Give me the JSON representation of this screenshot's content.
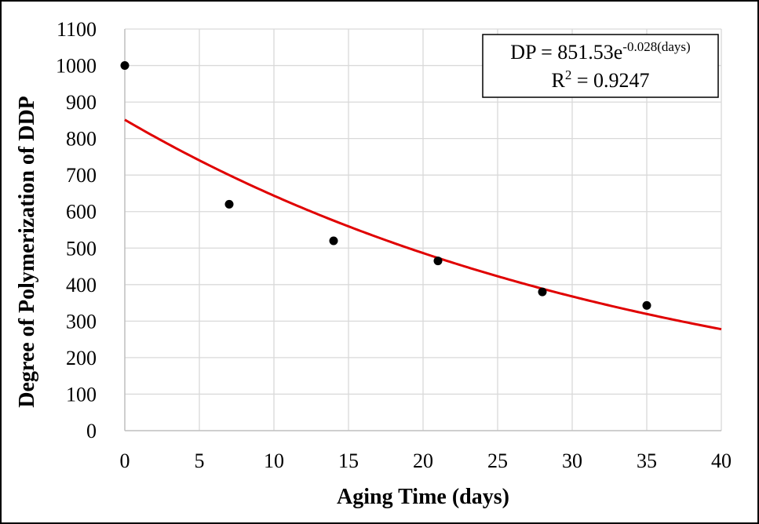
{
  "chart_data": {
    "type": "scatter",
    "title": "",
    "xlabel": "Aging Time (days)",
    "ylabel": "Degree of Polymerization of DDP",
    "xlim": [
      0,
      40
    ],
    "ylim": [
      0,
      1100
    ],
    "xticks": [
      0,
      5,
      10,
      15,
      20,
      25,
      30,
      35,
      40
    ],
    "yticks": [
      0,
      100,
      200,
      300,
      400,
      500,
      600,
      700,
      800,
      900,
      1000,
      1100
    ],
    "grid": true,
    "legend": "none",
    "series": [
      {
        "x": [
          0,
          7,
          14,
          21,
          28,
          35
        ],
        "y": [
          1000,
          620,
          520,
          465,
          380,
          343
        ],
        "marker": "circle",
        "color": "#000000"
      }
    ],
    "trendline": {
      "model": "exponential",
      "a": 851.53,
      "b": -0.028,
      "color": "#e00000"
    },
    "annotation": {
      "equation_main": "DP = 851.53e",
      "equation_exponent": "-0.028(days)",
      "r2_label": "R",
      "r2_power": "2",
      "r2_rest": " = 0.9247"
    }
  }
}
